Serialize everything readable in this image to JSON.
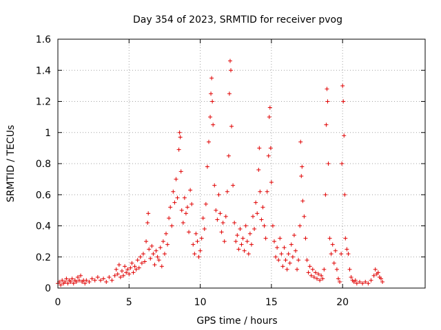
{
  "chart_data": {
    "type": "scatter",
    "title": "Day 354 of 2023, SRMTID for receiver pvog",
    "xlabel": "GPS time / hours",
    "ylabel": "SRMTID / TECUs",
    "xlim": [
      0,
      25.8
    ],
    "ylim": [
      0,
      1.6
    ],
    "xticks": [
      0,
      5,
      10,
      15,
      20
    ],
    "xtick_labels": [
      "0",
      "5",
      "10",
      "15",
      "20"
    ],
    "yticks": [
      0,
      0.2,
      0.4,
      0.6,
      0.8,
      1,
      1.2,
      1.4,
      1.6
    ],
    "ytick_labels": [
      "0",
      "0.2",
      "0.4",
      "0.6",
      "0.8",
      "1",
      "1.2",
      "1.4",
      "1.6"
    ],
    "grid": true,
    "marker": "plus",
    "color": "#e00000",
    "series": [
      {
        "name": "pvog",
        "points": [
          [
            0.0,
            0.03
          ],
          [
            0.1,
            0.04
          ],
          [
            0.2,
            0.02
          ],
          [
            0.3,
            0.05
          ],
          [
            0.4,
            0.03
          ],
          [
            0.5,
            0.04
          ],
          [
            0.6,
            0.06
          ],
          [
            0.7,
            0.03
          ],
          [
            0.8,
            0.05
          ],
          [
            0.9,
            0.04
          ],
          [
            1.0,
            0.06
          ],
          [
            1.1,
            0.03
          ],
          [
            1.2,
            0.05
          ],
          [
            1.3,
            0.04
          ],
          [
            1.4,
            0.07
          ],
          [
            1.5,
            0.05
          ],
          [
            1.6,
            0.08
          ],
          [
            1.7,
            0.04
          ],
          [
            1.8,
            0.05
          ],
          [
            1.9,
            0.03
          ],
          [
            2.0,
            0.05
          ],
          [
            2.2,
            0.04
          ],
          [
            2.4,
            0.06
          ],
          [
            2.6,
            0.05
          ],
          [
            2.8,
            0.07
          ],
          [
            3.0,
            0.05
          ],
          [
            3.2,
            0.06
          ],
          [
            3.4,
            0.04
          ],
          [
            3.6,
            0.07
          ],
          [
            3.8,
            0.05
          ],
          [
            4.0,
            0.08
          ],
          [
            4.1,
            0.12
          ],
          [
            4.2,
            0.09
          ],
          [
            4.3,
            0.15
          ],
          [
            4.4,
            0.07
          ],
          [
            4.5,
            0.11
          ],
          [
            4.6,
            0.08
          ],
          [
            4.7,
            0.14
          ],
          [
            4.8,
            0.1
          ],
          [
            4.9,
            0.12
          ],
          [
            5.0,
            0.09
          ],
          [
            5.1,
            0.13
          ],
          [
            5.2,
            0.16
          ],
          [
            5.3,
            0.1
          ],
          [
            5.4,
            0.14
          ],
          [
            5.5,
            0.12
          ],
          [
            5.6,
            0.18
          ],
          [
            5.7,
            0.13
          ],
          [
            5.8,
            0.2
          ],
          [
            5.9,
            0.16
          ],
          [
            6.0,
            0.22
          ],
          [
            6.1,
            0.17
          ],
          [
            6.2,
            0.3
          ],
          [
            6.3,
            0.42
          ],
          [
            6.35,
            0.48
          ],
          [
            6.4,
            0.25
          ],
          [
            6.5,
            0.19
          ],
          [
            6.6,
            0.27
          ],
          [
            6.7,
            0.22
          ],
          [
            6.8,
            0.15
          ],
          [
            6.9,
            0.24
          ],
          [
            7.0,
            0.2
          ],
          [
            7.1,
            0.18
          ],
          [
            7.2,
            0.26
          ],
          [
            7.3,
            0.14
          ],
          [
            7.4,
            0.3
          ],
          [
            7.5,
            0.22
          ],
          [
            7.6,
            0.35
          ],
          [
            7.7,
            0.28
          ],
          [
            7.8,
            0.45
          ],
          [
            7.9,
            0.52
          ],
          [
            8.0,
            0.4
          ],
          [
            8.1,
            0.62
          ],
          [
            8.2,
            0.55
          ],
          [
            8.3,
            0.7
          ],
          [
            8.4,
            0.58
          ],
          [
            8.5,
            0.89
          ],
          [
            8.55,
            1.0
          ],
          [
            8.6,
            0.97
          ],
          [
            8.65,
            0.75
          ],
          [
            8.7,
            0.5
          ],
          [
            8.8,
            0.42
          ],
          [
            8.9,
            0.58
          ],
          [
            9.0,
            0.48
          ],
          [
            9.1,
            0.52
          ],
          [
            9.2,
            0.36
          ],
          [
            9.3,
            0.63
          ],
          [
            9.4,
            0.54
          ],
          [
            9.5,
            0.28
          ],
          [
            9.6,
            0.22
          ],
          [
            9.7,
            0.35
          ],
          [
            9.8,
            0.3
          ],
          [
            9.9,
            0.2
          ],
          [
            10.0,
            0.24
          ],
          [
            10.1,
            0.32
          ],
          [
            10.2,
            0.45
          ],
          [
            10.3,
            0.38
          ],
          [
            10.4,
            0.54
          ],
          [
            10.5,
            0.78
          ],
          [
            10.6,
            0.94
          ],
          [
            10.7,
            1.1
          ],
          [
            10.75,
            1.25
          ],
          [
            10.8,
            1.35
          ],
          [
            10.85,
            1.2
          ],
          [
            10.9,
            1.05
          ],
          [
            11.0,
            0.66
          ],
          [
            11.1,
            0.5
          ],
          [
            11.2,
            0.44
          ],
          [
            11.3,
            0.6
          ],
          [
            11.4,
            0.48
          ],
          [
            11.5,
            0.36
          ],
          [
            11.6,
            0.42
          ],
          [
            11.7,
            0.3
          ],
          [
            11.8,
            0.46
          ],
          [
            11.9,
            0.62
          ],
          [
            12.0,
            0.85
          ],
          [
            12.05,
            1.25
          ],
          [
            12.1,
            1.46
          ],
          [
            12.15,
            1.4
          ],
          [
            12.2,
            1.04
          ],
          [
            12.3,
            0.66
          ],
          [
            12.4,
            0.42
          ],
          [
            12.5,
            0.3
          ],
          [
            12.6,
            0.34
          ],
          [
            12.7,
            0.25
          ],
          [
            12.8,
            0.38
          ],
          [
            12.9,
            0.28
          ],
          [
            13.0,
            0.32
          ],
          [
            13.1,
            0.24
          ],
          [
            13.2,
            0.4
          ],
          [
            13.3,
            0.3
          ],
          [
            13.4,
            0.22
          ],
          [
            13.5,
            0.35
          ],
          [
            13.6,
            0.28
          ],
          [
            13.7,
            0.46
          ],
          [
            13.8,
            0.38
          ],
          [
            13.9,
            0.55
          ],
          [
            14.0,
            0.48
          ],
          [
            14.1,
            0.76
          ],
          [
            14.15,
            0.9
          ],
          [
            14.2,
            0.62
          ],
          [
            14.3,
            0.44
          ],
          [
            14.4,
            0.52
          ],
          [
            14.5,
            0.4
          ],
          [
            14.6,
            0.32
          ],
          [
            14.7,
            0.62
          ],
          [
            14.8,
            0.85
          ],
          [
            14.85,
            1.1
          ],
          [
            14.9,
            1.16
          ],
          [
            14.95,
            0.9
          ],
          [
            15.0,
            0.68
          ],
          [
            15.1,
            0.4
          ],
          [
            15.2,
            0.3
          ],
          [
            15.3,
            0.2
          ],
          [
            15.4,
            0.26
          ],
          [
            15.5,
            0.18
          ],
          [
            15.6,
            0.32
          ],
          [
            15.7,
            0.22
          ],
          [
            15.8,
            0.14
          ],
          [
            15.9,
            0.26
          ],
          [
            16.0,
            0.18
          ],
          [
            16.1,
            0.12
          ],
          [
            16.2,
            0.22
          ],
          [
            16.3,
            0.16
          ],
          [
            16.4,
            0.28
          ],
          [
            16.5,
            0.2
          ],
          [
            16.6,
            0.34
          ],
          [
            16.7,
            0.24
          ],
          [
            16.8,
            0.12
          ],
          [
            16.9,
            0.18
          ],
          [
            17.0,
            0.4
          ],
          [
            17.05,
            0.94
          ],
          [
            17.1,
            0.72
          ],
          [
            17.15,
            0.78
          ],
          [
            17.2,
            0.56
          ],
          [
            17.3,
            0.46
          ],
          [
            17.4,
            0.32
          ],
          [
            17.5,
            0.18
          ],
          [
            17.6,
            0.1
          ],
          [
            17.7,
            0.14
          ],
          [
            17.8,
            0.08
          ],
          [
            17.9,
            0.12
          ],
          [
            18.0,
            0.07
          ],
          [
            18.1,
            0.1
          ],
          [
            18.2,
            0.06
          ],
          [
            18.3,
            0.09
          ],
          [
            18.4,
            0.05
          ],
          [
            18.5,
            0.08
          ],
          [
            18.6,
            0.06
          ],
          [
            18.7,
            0.12
          ],
          [
            18.8,
            0.6
          ],
          [
            18.85,
            1.05
          ],
          [
            18.9,
            1.28
          ],
          [
            18.95,
            1.2
          ],
          [
            19.0,
            0.8
          ],
          [
            19.1,
            0.32
          ],
          [
            19.2,
            0.22
          ],
          [
            19.3,
            0.28
          ],
          [
            19.4,
            0.16
          ],
          [
            19.5,
            0.24
          ],
          [
            19.6,
            0.12
          ],
          [
            19.7,
            0.06
          ],
          [
            19.8,
            0.04
          ],
          [
            19.9,
            0.22
          ],
          [
            19.95,
            0.8
          ],
          [
            20.0,
            1.3
          ],
          [
            20.05,
            1.2
          ],
          [
            20.1,
            0.98
          ],
          [
            20.15,
            0.6
          ],
          [
            20.2,
            0.32
          ],
          [
            20.3,
            0.25
          ],
          [
            20.4,
            0.22
          ],
          [
            20.5,
            0.12
          ],
          [
            20.6,
            0.07
          ],
          [
            20.7,
            0.05
          ],
          [
            20.8,
            0.04
          ],
          [
            20.9,
            0.05
          ],
          [
            21.0,
            0.03
          ],
          [
            21.2,
            0.04
          ],
          [
            21.4,
            0.03
          ],
          [
            21.6,
            0.04
          ],
          [
            21.8,
            0.03
          ],
          [
            22.0,
            0.05
          ],
          [
            22.2,
            0.08
          ],
          [
            22.3,
            0.12
          ],
          [
            22.4,
            0.09
          ],
          [
            22.5,
            0.1
          ],
          [
            22.6,
            0.07
          ],
          [
            22.7,
            0.06
          ],
          [
            22.8,
            0.04
          ]
        ]
      }
    ]
  }
}
